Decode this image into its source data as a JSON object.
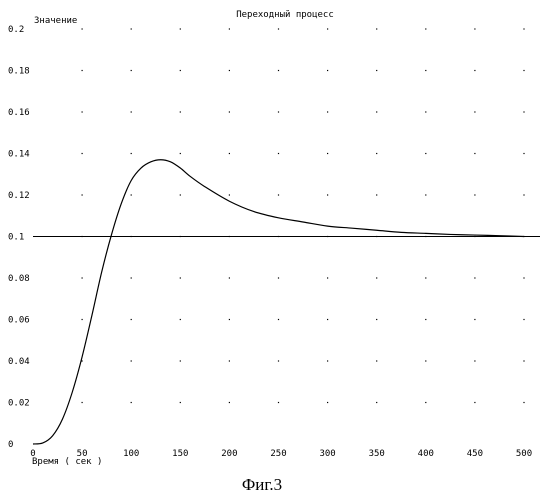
{
  "chart_data": {
    "type": "line",
    "title": "Переходный процесс",
    "ylabel": "Значение",
    "xlabel": "Время ( сек )",
    "caption": "Фиг.3",
    "xlim": [
      0,
      500
    ],
    "ylim": [
      0,
      0.2
    ],
    "x_ticks": [
      "0",
      "50",
      "100",
      "150",
      "200",
      "250",
      "300",
      "350",
      "400",
      "450",
      "500"
    ],
    "y_ticks": [
      "0",
      "0.02",
      "0.04",
      "0.06",
      "0.08",
      "0.1",
      "0.12",
      "0.14",
      "0.16",
      "0.18",
      "0.2"
    ],
    "grid": "dotted",
    "reference_line": 0.1,
    "series": [
      {
        "x": [
          0,
          10,
          20,
          30,
          40,
          50,
          60,
          70,
          80,
          90,
          100,
          110,
          120,
          130,
          140,
          150,
          160,
          175,
          200,
          225,
          250,
          275,
          300,
          325,
          350,
          375,
          400,
          425,
          450,
          475,
          500
        ],
        "values": [
          0,
          0.0005,
          0.004,
          0.012,
          0.025,
          0.042,
          0.062,
          0.083,
          0.101,
          0.116,
          0.127,
          0.133,
          0.136,
          0.137,
          0.136,
          0.133,
          0.129,
          0.124,
          0.117,
          0.112,
          0.109,
          0.107,
          0.105,
          0.104,
          0.103,
          0.102,
          0.1015,
          0.101,
          0.1007,
          0.1004,
          0.1
        ]
      }
    ]
  }
}
